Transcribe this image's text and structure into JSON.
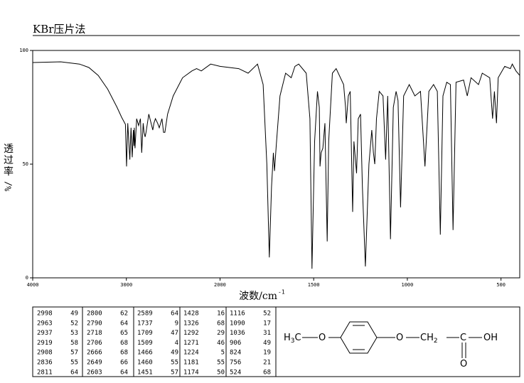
{
  "chart_data": {
    "type": "line",
    "title": "KBr压片法",
    "x_label": "波数/cm",
    "x_label_sup": "-1",
    "y_label": [
      "透",
      "过",
      "率",
      "%/"
    ],
    "xlim": [
      4000,
      400
    ],
    "xticks": [
      4000,
      3000,
      2000,
      1500,
      1000,
      500
    ],
    "ylim": [
      0,
      100
    ],
    "yticks": [
      0,
      50,
      100
    ],
    "color": "#000000",
    "x": [
      4000,
      3700,
      3500,
      3400,
      3300,
      3200,
      3100,
      3050,
      3010,
      2998,
      2985,
      2963,
      2950,
      2937,
      2925,
      2919,
      2915,
      2908,
      2890,
      2870,
      2850,
      2836,
      2820,
      2811,
      2800,
      2790,
      2760,
      2718,
      2706,
      2690,
      2666,
      2649,
      2620,
      2603,
      2589,
      2560,
      2500,
      2400,
      2300,
      2250,
      2200,
      2100,
      2000,
      1900,
      1850,
      1800,
      1770,
      1750,
      1737,
      1725,
      1715,
      1709,
      1700,
      1680,
      1650,
      1620,
      1600,
      1580,
      1540,
      1520,
      1509,
      1495,
      1480,
      1470,
      1466,
      1460,
      1451,
      1440,
      1428,
      1420,
      1400,
      1380,
      1340,
      1330,
      1326,
      1315,
      1305,
      1292,
      1285,
      1271,
      1262,
      1250,
      1240,
      1224,
      1205,
      1190,
      1181,
      1174,
      1165,
      1150,
      1130,
      1116,
      1105,
      1090,
      1075,
      1060,
      1050,
      1036,
      1020,
      990,
      960,
      930,
      906,
      885,
      860,
      840,
      824,
      810,
      790,
      770,
      756,
      740,
      700,
      680,
      660,
      620,
      600,
      560,
      545,
      535,
      524,
      515,
      480,
      450,
      440,
      420,
      400
    ],
    "values": [
      94.7,
      95,
      94,
      92.5,
      89,
      83,
      75,
      70.6,
      67.5,
      49,
      68,
      52,
      66,
      53,
      65,
      58,
      66,
      57,
      70,
      67,
      70,
      55,
      68,
      64,
      62,
      64,
      72,
      65,
      68,
      70,
      68,
      66,
      70,
      64,
      64,
      72,
      80,
      88,
      91,
      92,
      91,
      94,
      93,
      92,
      90,
      94,
      85,
      50,
      9,
      40,
      55,
      47,
      58,
      80,
      90,
      88,
      93,
      94,
      90,
      70,
      4,
      60,
      82,
      75,
      49,
      55,
      57,
      68,
      16,
      60,
      90,
      92,
      85,
      75,
      68,
      80,
      82,
      29,
      60,
      46,
      70,
      72,
      40,
      5,
      50,
      65,
      55,
      50,
      70,
      82,
      80,
      52,
      80,
      17,
      75,
      82,
      78,
      31,
      80,
      85,
      80,
      82,
      49,
      82,
      85,
      82,
      19,
      80,
      86,
      85,
      21,
      86,
      87,
      80,
      88,
      85,
      90,
      88,
      70,
      82,
      68,
      88,
      93,
      92,
      94,
      91,
      89
    ],
    "peak_table": [
      [
        [
          2998,
          49
        ],
        [
          2963,
          52
        ],
        [
          2937,
          53
        ],
        [
          2919,
          58
        ],
        [
          2908,
          57
        ],
        [
          2836,
          55
        ],
        [
          2811,
          64
        ]
      ],
      [
        [
          2800,
          62
        ],
        [
          2790,
          64
        ],
        [
          2718,
          65
        ],
        [
          2706,
          68
        ],
        [
          2666,
          68
        ],
        [
          2649,
          66
        ],
        [
          2603,
          64
        ]
      ],
      [
        [
          2589,
          64
        ],
        [
          1737,
          9
        ],
        [
          1709,
          47
        ],
        [
          1509,
          4
        ],
        [
          1466,
          49
        ],
        [
          1460,
          55
        ],
        [
          1451,
          57
        ]
      ],
      [
        [
          1428,
          16
        ],
        [
          1326,
          68
        ],
        [
          1292,
          29
        ],
        [
          1271,
          46
        ],
        [
          1224,
          5
        ],
        [
          1181,
          55
        ],
        [
          1174,
          50
        ]
      ],
      [
        [
          1116,
          52
        ],
        [
          1090,
          17
        ],
        [
          1036,
          31
        ],
        [
          906,
          49
        ],
        [
          824,
          19
        ],
        [
          756,
          21
        ],
        [
          524,
          68
        ]
      ]
    ],
    "structure": [
      "H",
      "3",
      "C",
      "O",
      "O",
      "CH",
      "2",
      "C",
      "OH",
      "O"
    ]
  }
}
